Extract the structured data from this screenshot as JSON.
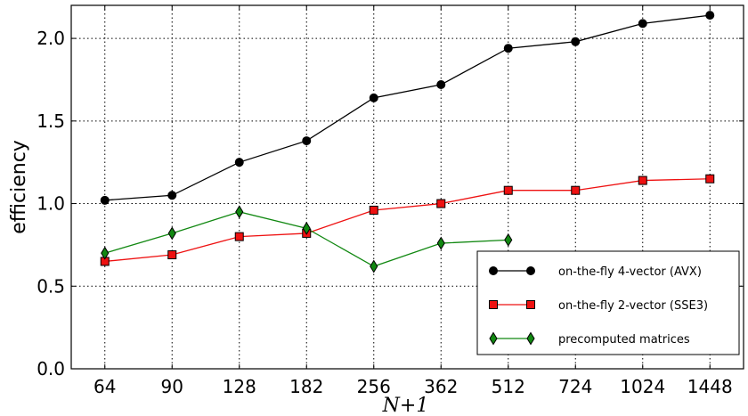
{
  "chart_data": {
    "type": "line",
    "title": "",
    "xlabel": "N+1",
    "ylabel": "efficiency",
    "categories": [
      "64",
      "90",
      "128",
      "182",
      "256",
      "362",
      "512",
      "724",
      "1024",
      "1448"
    ],
    "ylim": [
      0.0,
      2.2
    ],
    "yticks": [
      "0.0",
      "0.5",
      "1.0",
      "1.5",
      "2.0"
    ],
    "grid": true,
    "legend_position": "bottom-right",
    "series": [
      {
        "name": "on-the-fly 4-vector (AVX)",
        "marker": "circle",
        "color": "#000000",
        "values": [
          1.02,
          1.05,
          1.25,
          1.38,
          1.64,
          1.72,
          1.94,
          1.98,
          2.09,
          2.14
        ]
      },
      {
        "name": "on-the-fly 2-vector (SSE3)",
        "marker": "square",
        "color": "#ee1111",
        "values": [
          0.65,
          0.69,
          0.8,
          0.82,
          0.96,
          1.0,
          1.08,
          1.08,
          1.14,
          1.15
        ]
      },
      {
        "name": "precomputed matrices",
        "marker": "diamond",
        "color": "#118811",
        "values": [
          0.7,
          0.82,
          0.95,
          0.85,
          0.62,
          0.76,
          0.78,
          null,
          null,
          null
        ]
      }
    ]
  }
}
